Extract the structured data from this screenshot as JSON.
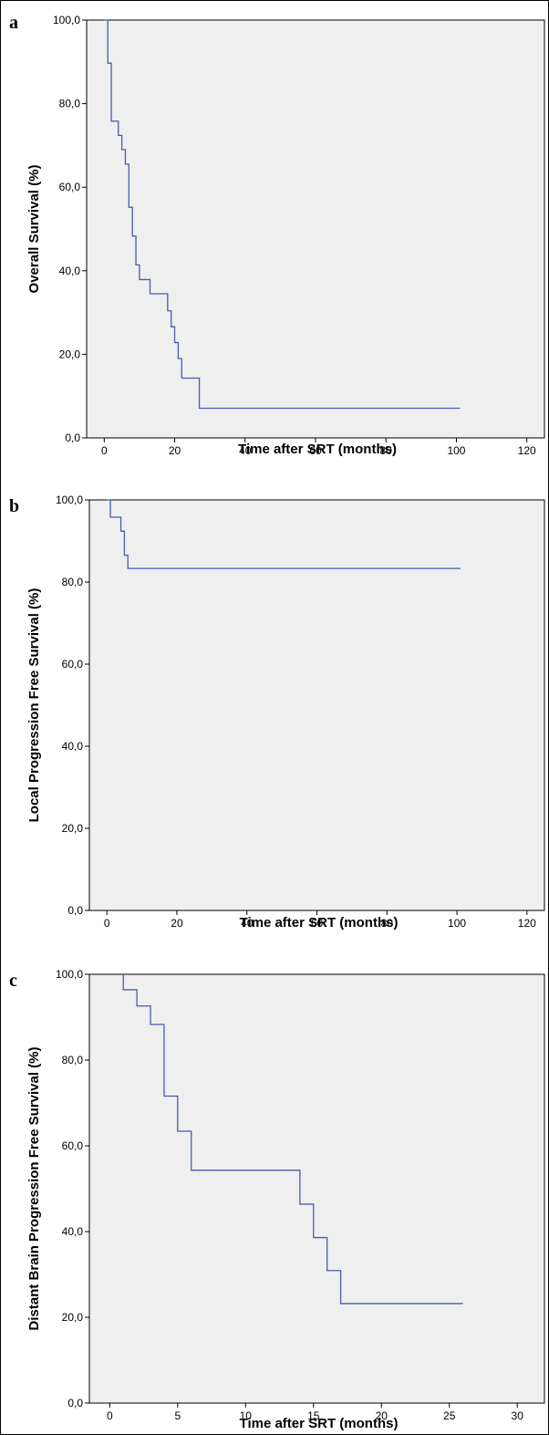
{
  "chart_data": [
    {
      "type": "line",
      "panel": "a",
      "xlabel": "Time after SRT (months)",
      "ylabel": "Overall Survival (%)",
      "xlim": [
        -5,
        125
      ],
      "ylim": [
        0,
        100
      ],
      "x_ticks": [
        0,
        20,
        40,
        60,
        80,
        100,
        120
      ],
      "y_ticks": [
        "0,0",
        "20,0",
        "40,0",
        "60,0",
        "80,0",
        "100,0"
      ],
      "grid": false,
      "step": true,
      "series": [
        {
          "x": [
            0,
            1,
            1,
            2,
            2,
            4,
            4,
            5,
            5,
            6,
            6,
            7,
            7,
            8,
            8,
            9,
            9,
            10,
            10,
            13,
            13,
            18,
            18,
            19,
            19,
            20,
            20,
            21,
            21,
            22,
            22,
            27,
            27,
            101
          ],
          "y": [
            100,
            100,
            89.7,
            89.7,
            75.8,
            75.8,
            72.4,
            72.4,
            69,
            69,
            65.5,
            65.5,
            55.2,
            55.2,
            48.3,
            48.3,
            41.4,
            41.4,
            37.9,
            37.9,
            34.5,
            34.5,
            30.4,
            30.4,
            26.6,
            26.6,
            22.8,
            22.8,
            19,
            19,
            14.3,
            14.3,
            7.1,
            7.1
          ]
        }
      ]
    },
    {
      "type": "line",
      "panel": "b",
      "xlabel": "Time after SRT (months)",
      "ylabel": "Local Progression Free Survival (%)",
      "xlim": [
        -5,
        125
      ],
      "ylim": [
        0,
        100
      ],
      "x_ticks": [
        0,
        20,
        40,
        60,
        80,
        100,
        120
      ],
      "y_ticks": [
        "0,0",
        "20,0",
        "40,0",
        "60,0",
        "80,0",
        "100,0"
      ],
      "grid": false,
      "step": true,
      "series": [
        {
          "x": [
            0,
            1,
            1,
            4,
            4,
            5,
            5,
            6,
            6,
            101
          ],
          "y": [
            100,
            100,
            95.8,
            95.8,
            92.4,
            92.4,
            86.5,
            86.5,
            83.3,
            83.3
          ]
        }
      ]
    },
    {
      "type": "line",
      "panel": "c",
      "xlabel": "Time after SRT (months)",
      "ylabel": "Distant Brain Progression Free Survival (%)",
      "xlim": [
        -1.5,
        32
      ],
      "ylim": [
        0,
        100
      ],
      "x_ticks": [
        0,
        5,
        10,
        15,
        20,
        25,
        30
      ],
      "y_ticks": [
        "0,0",
        "20,0",
        "40,0",
        "60,0",
        "80,0",
        "100,0"
      ],
      "grid": false,
      "step": true,
      "series": [
        {
          "x": [
            1,
            1,
            2,
            2,
            3,
            3,
            4,
            4,
            5,
            5,
            6,
            6,
            14,
            14,
            15,
            15,
            16,
            16,
            17,
            17,
            26
          ],
          "y": [
            100,
            96.4,
            96.4,
            92.6,
            92.6,
            88.3,
            88.3,
            71.6,
            71.6,
            63.4,
            63.4,
            54.3,
            54.3,
            46.4,
            46.4,
            38.6,
            38.6,
            30.9,
            30.9,
            23.2,
            23.2
          ]
        }
      ]
    }
  ],
  "colors": {
    "plot_background": "#efefef",
    "curve": "#4a5ca8",
    "axis": "#000000"
  }
}
